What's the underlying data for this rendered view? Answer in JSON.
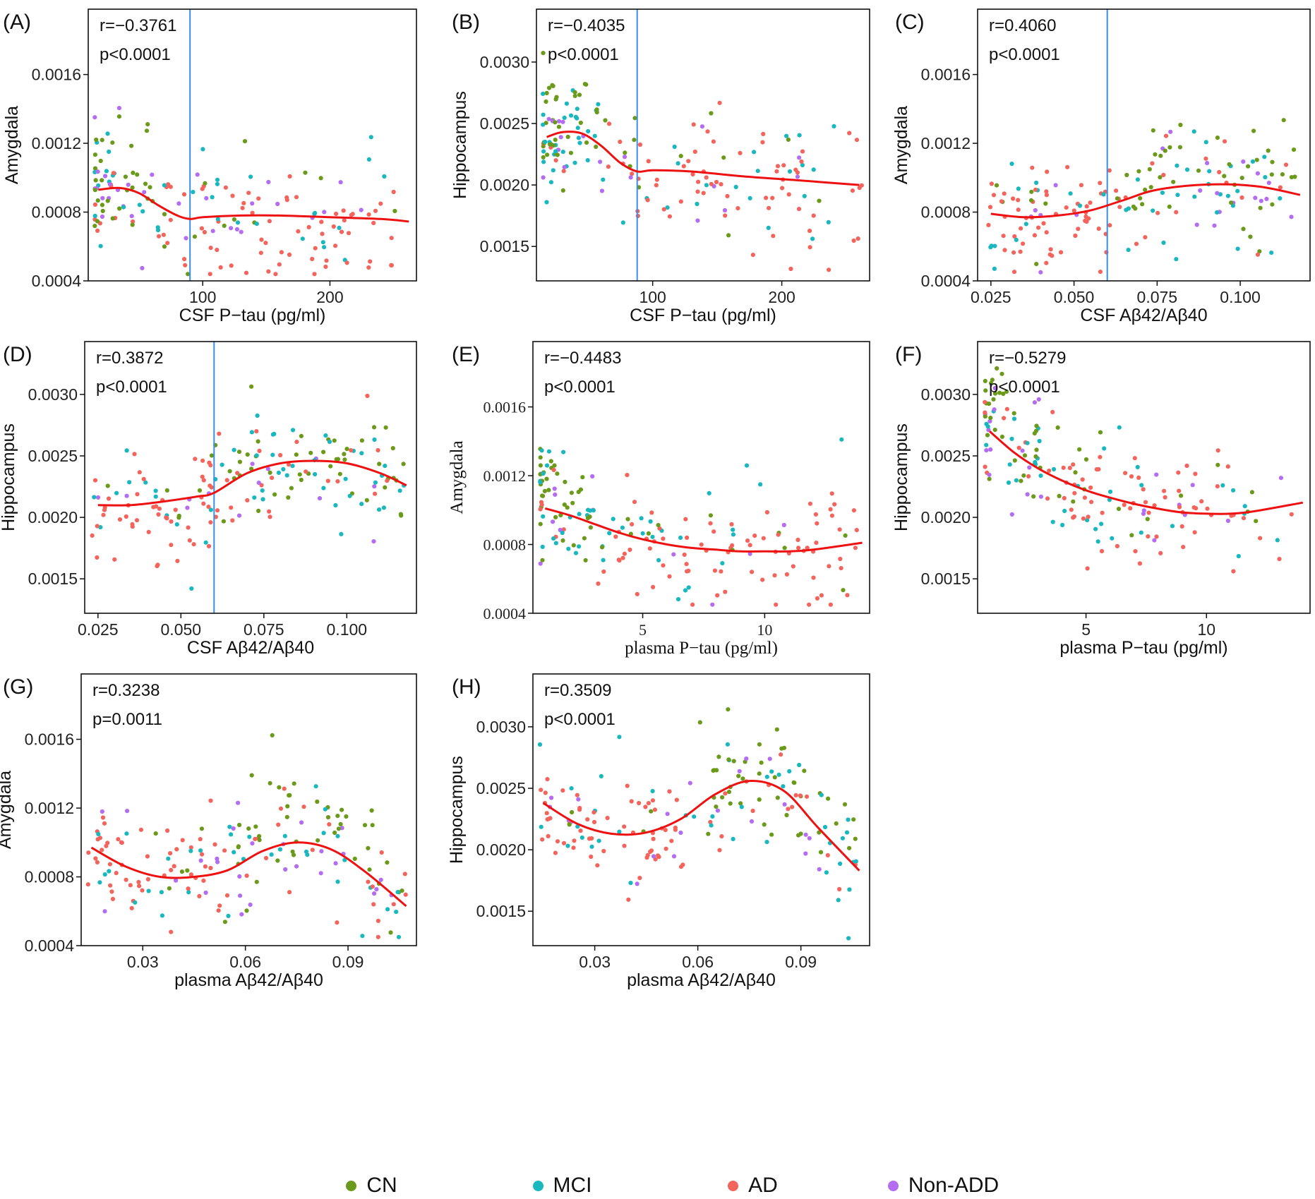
{
  "colors": {
    "CN": "#6b9a1a",
    "MCI": "#19b7be",
    "AD": "#f2645c",
    "Non-ADD": "#b46cf0",
    "fit": "#ee1111",
    "cutoff": "#3a8ee6"
  },
  "legend": [
    {
      "label": "CN",
      "group": "CN"
    },
    {
      "label": "MCI",
      "group": "MCI"
    },
    {
      "label": "AD",
      "group": "AD"
    },
    {
      "label": "Non-ADD",
      "group": "Non-ADD"
    }
  ],
  "chart_data": [
    {
      "panel": "(A)",
      "type": "scatter",
      "r_text": "r=−0.3761",
      "p_text": "p<0.0001",
      "xlabel": "CSF P−tau (pg/ml)",
      "ylabel": "Amygdala",
      "xlim": [
        10,
        268
      ],
      "ylim": [
        0.0004,
        0.00198
      ],
      "xticks": [
        100,
        200
      ],
      "xticklabels": [
        "100",
        "200"
      ],
      "yticks": [
        0.0004,
        0.0008,
        0.0012,
        0.0016
      ],
      "yticklabels": [
        "0.0004",
        "0.0008",
        "0.0012",
        "0.0016"
      ],
      "cutoff_x": 90,
      "smooth_x": [
        18,
        35,
        50,
        65,
        80,
        90,
        100,
        130,
        160,
        200,
        240,
        262
      ],
      "smooth_y": [
        0.00093,
        0.00094,
        0.00091,
        0.00084,
        0.00078,
        0.00076,
        0.00077,
        0.00078,
        0.00078,
        0.00077,
        0.00076,
        0.000745
      ],
      "trend": {
        "xmin": 15,
        "xmax": 265,
        "ymin": 0.00044,
        "ymax": 0.00195,
        "x_skew": 2,
        "shape": "drop"
      }
    },
    {
      "panel": "(B)",
      "type": "scatter",
      "r_text": "r=−0.4035",
      "p_text": "p<0.0001",
      "xlabel": "CSF P−tau (pg/ml)",
      "ylabel": "Hippocampus",
      "xlim": [
        10,
        268
      ],
      "ylim": [
        0.00122,
        0.00343
      ],
      "xticks": [
        100,
        200
      ],
      "xticklabels": [
        "100",
        "200"
      ],
      "yticks": [
        0.0015,
        0.002,
        0.0025,
        0.003
      ],
      "yticklabels": [
        "0.0015",
        "0.0020",
        "0.0025",
        "0.0030"
      ],
      "cutoff_x": 88,
      "smooth_x": [
        18,
        30,
        45,
        60,
        75,
        88,
        100,
        130,
        170,
        210,
        260
      ],
      "smooth_y": [
        0.00239,
        0.00243,
        0.00242,
        0.00232,
        0.00218,
        0.00211,
        0.00212,
        0.00211,
        0.00207,
        0.00204,
        0.002
      ],
      "trend": {
        "xmin": 15,
        "xmax": 262,
        "ymin": 0.00128,
        "ymax": 0.00332,
        "x_skew": 2,
        "shape": "drop"
      }
    },
    {
      "panel": "(C)",
      "type": "scatter",
      "r_text": "r=0.4060",
      "p_text": "p<0.0001",
      "xlabel": "CSF Aβ42/Aβ40",
      "ylabel": "Amygdala",
      "xlim": [
        0.021,
        0.121
      ],
      "ylim": [
        0.0004,
        0.00198
      ],
      "xticks": [
        0.025,
        0.05,
        0.075,
        0.1
      ],
      "xticklabels": [
        "0.025",
        "0.050",
        "0.075",
        "0.100"
      ],
      "yticks": [
        0.0004,
        0.0008,
        0.0012,
        0.0016
      ],
      "yticklabels": [
        "0.0004",
        "0.0008",
        "0.0012",
        "0.0016"
      ],
      "cutoff_x": 0.06,
      "smooth_x": [
        0.025,
        0.035,
        0.045,
        0.055,
        0.065,
        0.075,
        0.09,
        0.105,
        0.118
      ],
      "smooth_y": [
        0.00079,
        0.00077,
        0.00078,
        0.00081,
        0.00087,
        0.00093,
        0.00096,
        0.00095,
        0.0009
      ],
      "trend": {
        "xmin": 0.023,
        "xmax": 0.118,
        "ymin": 0.00045,
        "ymax": 0.00192,
        "x_skew": 1,
        "shape": "rise"
      }
    },
    {
      "panel": "(D)",
      "type": "scatter",
      "r_text": "r=0.3872",
      "p_text": "p<0.0001",
      "xlabel": "CSF Aβ42/Aβ40",
      "ylabel": "Hippocampus",
      "xlim": [
        0.021,
        0.121
      ],
      "ylim": [
        0.00122,
        0.00343
      ],
      "xticks": [
        0.025,
        0.05,
        0.075,
        0.1
      ],
      "xticklabels": [
        "0.025",
        "0.050",
        "0.075",
        "0.100"
      ],
      "yticks": [
        0.0015,
        0.002,
        0.0025,
        0.003
      ],
      "yticklabels": [
        "0.0015",
        "0.0020",
        "0.0025",
        "0.0030"
      ],
      "cutoff_x": 0.06,
      "smooth_x": [
        0.025,
        0.035,
        0.045,
        0.055,
        0.06,
        0.07,
        0.08,
        0.09,
        0.1,
        0.11,
        0.118
      ],
      "smooth_y": [
        0.0021,
        0.0021,
        0.00213,
        0.00217,
        0.0022,
        0.00236,
        0.00244,
        0.00246,
        0.00244,
        0.00236,
        0.00226
      ],
      "trend": {
        "xmin": 0.023,
        "xmax": 0.118,
        "ymin": 0.00128,
        "ymax": 0.00332,
        "x_skew": 1,
        "shape": "rise"
      }
    },
    {
      "panel": "(E)",
      "type": "scatter",
      "r_text": "r=−0.4483",
      "p_text": "p<0.0001",
      "xlabel": "plasma P−tau (pg/ml)",
      "ylabel": "Amygdala",
      "xlim": [
        0.5,
        14.3
      ],
      "ylim": [
        0.0004,
        0.00198
      ],
      "xticks": [
        5,
        10
      ],
      "xticklabels": [
        "5",
        "10"
      ],
      "yticks": [
        0.0004,
        0.0008,
        0.0012,
        0.0016
      ],
      "yticklabels": [
        "0.0004",
        "0.0008",
        "0.0012",
        "0.0016"
      ],
      "cutoff_x": null,
      "smooth_x": [
        1,
        2,
        3,
        4,
        5,
        6,
        7,
        8,
        9,
        10,
        11,
        12,
        14
      ],
      "smooth_y": [
        0.00101,
        0.00097,
        0.00092,
        0.00087,
        0.00083,
        0.0008,
        0.00078,
        0.00077,
        0.00076,
        0.00076,
        0.00076,
        0.00077,
        0.00081
      ],
      "trend": {
        "xmin": 0.8,
        "xmax": 13.8,
        "ymin": 0.00045,
        "ymax": 0.00193,
        "x_skew": 2,
        "shape": "drop"
      }
    },
    {
      "panel": "(F)",
      "type": "scatter",
      "r_text": "r=−0.5279",
      "p_text": "p<0.0001",
      "xlabel": "plasma P−tau (pg/ml)",
      "ylabel": "Hippocampus",
      "xlim": [
        0.5,
        14.3
      ],
      "ylim": [
        0.00122,
        0.00343
      ],
      "xticks": [
        5,
        10
      ],
      "xticklabels": [
        "5",
        "10"
      ],
      "yticks": [
        0.0015,
        0.002,
        0.0025,
        0.003
      ],
      "yticklabels": [
        "0.0015",
        "0.0020",
        "0.0025",
        "0.0030"
      ],
      "cutoff_x": null,
      "smooth_x": [
        1,
        2,
        3,
        4,
        5,
        6,
        7,
        8,
        9,
        10,
        11,
        12,
        14
      ],
      "smooth_y": [
        0.0027,
        0.00253,
        0.0024,
        0.0023,
        0.00222,
        0.00216,
        0.00211,
        0.00207,
        0.00204,
        0.00203,
        0.00203,
        0.00205,
        0.00212
      ],
      "trend": {
        "xmin": 0.8,
        "xmax": 13.8,
        "ymin": 0.00128,
        "ymax": 0.00332,
        "x_skew": 2,
        "shape": "drop"
      }
    },
    {
      "panel": "(G)",
      "type": "scatter",
      "r_text": "r=0.3238",
      "p_text": "p=0.0011",
      "xlabel": "plasma Aβ42/Aβ40",
      "ylabel": "Amygdala",
      "xlim": [
        0.012,
        0.11
      ],
      "ylim": [
        0.0004,
        0.00198
      ],
      "xticks": [
        0.03,
        0.06,
        0.09
      ],
      "xticklabels": [
        "0.03",
        "0.06",
        "0.09"
      ],
      "yticks": [
        0.0004,
        0.0008,
        0.0012,
        0.0016
      ],
      "yticklabels": [
        "0.0004",
        "0.0008",
        "0.0012",
        "0.0016"
      ],
      "cutoff_x": null,
      "smooth_x": [
        0.015,
        0.025,
        0.035,
        0.045,
        0.055,
        0.065,
        0.075,
        0.085,
        0.095,
        0.107
      ],
      "smooth_y": [
        0.00097,
        0.00086,
        0.0008,
        0.0008,
        0.00084,
        0.00095,
        0.001,
        0.00096,
        0.00083,
        0.00063
      ],
      "trend": {
        "xmin": 0.014,
        "xmax": 0.107,
        "ymin": 0.00045,
        "ymax": 0.00192,
        "x_skew": 1,
        "shape": "hump"
      }
    },
    {
      "panel": "(H)",
      "type": "scatter",
      "r_text": "r=0.3509",
      "p_text": "p<0.0001",
      "xlabel": "plasma Aβ42/Aβ40",
      "ylabel": "Hippocampus",
      "xlim": [
        0.012,
        0.11
      ],
      "ylim": [
        0.00122,
        0.00343
      ],
      "xticks": [
        0.03,
        0.06,
        0.09
      ],
      "xticklabels": [
        "0.03",
        "0.06",
        "0.09"
      ],
      "yticks": [
        0.0015,
        0.002,
        0.0025,
        0.003
      ],
      "yticklabels": [
        "0.0015",
        "0.0020",
        "0.0025",
        "0.0030"
      ],
      "cutoff_x": null,
      "smooth_x": [
        0.015,
        0.025,
        0.035,
        0.045,
        0.055,
        0.065,
        0.075,
        0.085,
        0.095,
        0.107
      ],
      "smooth_y": [
        0.00238,
        0.00221,
        0.00213,
        0.00214,
        0.00225,
        0.00245,
        0.00256,
        0.00248,
        0.00218,
        0.00183
      ],
      "trend": {
        "xmin": 0.014,
        "xmax": 0.107,
        "ymin": 0.00128,
        "ymax": 0.00332,
        "x_skew": 1,
        "shape": "hump"
      }
    }
  ]
}
